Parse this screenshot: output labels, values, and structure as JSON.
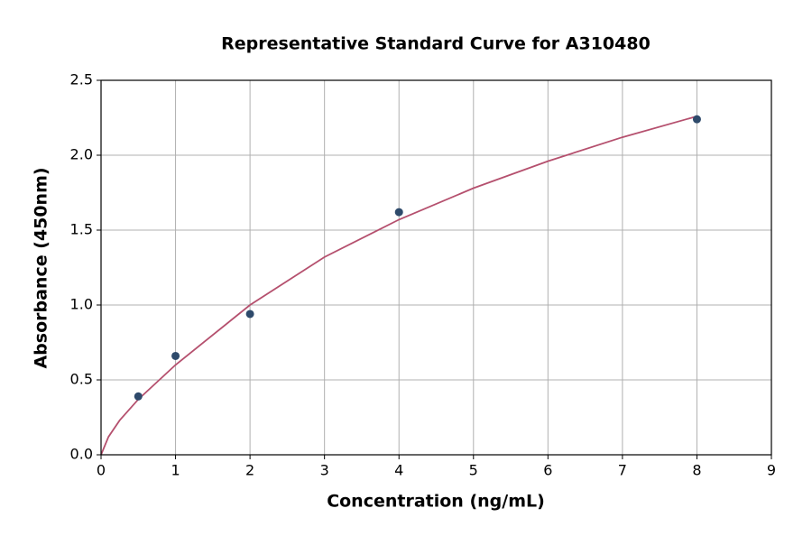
{
  "chart_data": {
    "type": "scatter",
    "title": "Representative Standard Curve for A310480",
    "x_label": "Concentration (ng/mL)",
    "y_label": "Absorbance (450nm)",
    "points": {
      "color": "#2e4a6b",
      "x": [
        0.5,
        1,
        2,
        4,
        8
      ],
      "values": [
        0.39,
        0.66,
        0.94,
        1.62,
        2.24
      ]
    },
    "curve": {
      "color": "#b5506e",
      "x": [
        0,
        0.1,
        0.25,
        0.5,
        1,
        2,
        3,
        4,
        5,
        6,
        7,
        8
      ],
      "values": [
        0,
        0.12,
        0.23,
        0.37,
        0.6,
        1.0,
        1.32,
        1.57,
        1.78,
        1.96,
        2.12,
        2.26
      ]
    },
    "xlim": [
      0,
      9
    ],
    "xticks": [
      0,
      1,
      2,
      3,
      4,
      5,
      6,
      7,
      8,
      9
    ],
    "ylim": [
      0,
      2.5
    ],
    "yticks": [
      {
        "value": 0,
        "label": "0.0"
      },
      0.5,
      {
        "value": 1,
        "label": "1.0"
      },
      1.5,
      {
        "value": 2,
        "label": "2.0"
      },
      2.5
    ],
    "grid": true
  }
}
